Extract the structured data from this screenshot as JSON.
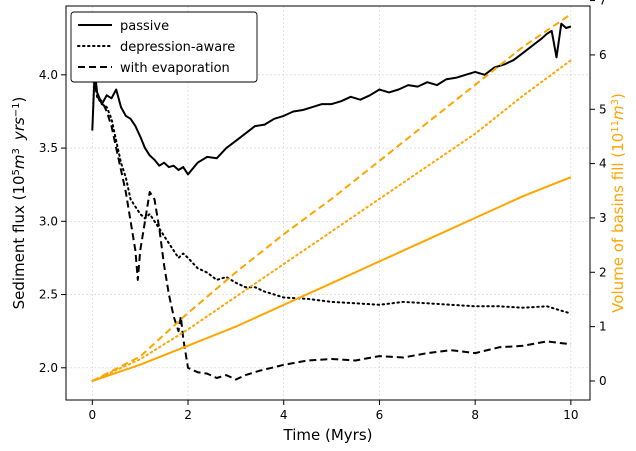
{
  "colors": {
    "left_series": "#000000",
    "right_series": "#ffa500"
  },
  "chart_data": {
    "type": "line",
    "title": "",
    "xlabel": "Time (Myrs)",
    "ylabel": {
      "main": "Sediment flux (10",
      "exp1": "5",
      "unit_m": "m",
      "exp2": "3",
      "unit_yrs": "yrs",
      "exp3": "−1",
      "close": ")"
    },
    "ylabel_right": {
      "main": "Volume of basins fill (10",
      "exp1": "11",
      "unit_m": "m",
      "exp2": "3",
      "close": ")"
    },
    "xlim": [
      -0.55,
      10.4
    ],
    "ylim": [
      1.78,
      4.47
    ],
    "ylim_right": [
      -0.35,
      6.9
    ],
    "xticks": [
      0,
      2,
      4,
      6,
      8,
      10
    ],
    "yticks": [
      2.0,
      2.5,
      3.0,
      3.5,
      4.0
    ],
    "yticks_right": [
      0,
      1,
      2,
      3,
      4,
      5,
      6,
      7
    ],
    "grid": true,
    "legend_position": "top-left",
    "legend": [
      "passive",
      "depression-aware",
      "with evaporation"
    ],
    "series": [
      {
        "name": "passive",
        "axis": "left",
        "style": "solid",
        "x": [
          0,
          0.05,
          0.1,
          0.2,
          0.3,
          0.4,
          0.5,
          0.6,
          0.7,
          0.8,
          0.9,
          1.0,
          1.1,
          1.2,
          1.3,
          1.4,
          1.5,
          1.6,
          1.7,
          1.8,
          1.9,
          2.0,
          2.2,
          2.4,
          2.6,
          2.8,
          3.0,
          3.2,
          3.4,
          3.6,
          3.8,
          4.0,
          4.2,
          4.4,
          4.6,
          4.8,
          5.0,
          5.2,
          5.4,
          5.6,
          5.8,
          6.0,
          6.2,
          6.4,
          6.6,
          6.8,
          7.0,
          7.2,
          7.4,
          7.6,
          7.8,
          8.0,
          8.2,
          8.4,
          8.6,
          8.8,
          9.0,
          9.2,
          9.4,
          9.5,
          9.6,
          9.7,
          9.8,
          9.9,
          10.0
        ],
        "y": [
          3.62,
          4.03,
          3.88,
          3.8,
          3.86,
          3.84,
          3.9,
          3.78,
          3.72,
          3.7,
          3.65,
          3.58,
          3.5,
          3.45,
          3.42,
          3.38,
          3.4,
          3.37,
          3.38,
          3.35,
          3.37,
          3.32,
          3.4,
          3.44,
          3.43,
          3.5,
          3.55,
          3.6,
          3.65,
          3.66,
          3.7,
          3.72,
          3.75,
          3.76,
          3.78,
          3.8,
          3.8,
          3.82,
          3.85,
          3.83,
          3.86,
          3.9,
          3.88,
          3.9,
          3.93,
          3.92,
          3.95,
          3.93,
          3.97,
          3.98,
          4.0,
          4.02,
          4.0,
          4.05,
          4.07,
          4.1,
          4.15,
          4.2,
          4.25,
          4.28,
          4.3,
          4.12,
          4.35,
          4.32,
          4.33
        ]
      },
      {
        "name": "depression-aware",
        "axis": "left",
        "style": "dotted",
        "x": [
          0,
          0.05,
          0.1,
          0.2,
          0.3,
          0.4,
          0.5,
          0.6,
          0.7,
          0.8,
          0.9,
          1.0,
          1.1,
          1.2,
          1.3,
          1.4,
          1.5,
          1.6,
          1.7,
          1.8,
          1.9,
          2.0,
          2.2,
          2.4,
          2.6,
          2.8,
          3.0,
          3.2,
          3.4,
          3.6,
          3.8,
          4.0,
          4.5,
          5.0,
          5.5,
          6.0,
          6.5,
          7.0,
          7.5,
          8.0,
          8.5,
          9.0,
          9.5,
          10.0
        ],
        "y": [
          4.0,
          4.03,
          3.85,
          3.8,
          3.78,
          3.7,
          3.55,
          3.4,
          3.3,
          3.15,
          3.1,
          3.05,
          3.02,
          3.05,
          3.0,
          2.95,
          2.9,
          2.85,
          2.8,
          2.75,
          2.78,
          2.75,
          2.68,
          2.65,
          2.6,
          2.62,
          2.58,
          2.55,
          2.55,
          2.52,
          2.5,
          2.48,
          2.47,
          2.45,
          2.44,
          2.43,
          2.45,
          2.44,
          2.43,
          2.42,
          2.42,
          2.41,
          2.42,
          2.37
        ]
      },
      {
        "name": "with evaporation",
        "axis": "left",
        "style": "dashed",
        "x": [
          0,
          0.05,
          0.1,
          0.2,
          0.3,
          0.4,
          0.5,
          0.6,
          0.7,
          0.8,
          0.9,
          0.95,
          1.0,
          1.1,
          1.2,
          1.3,
          1.4,
          1.5,
          1.6,
          1.7,
          1.8,
          1.85,
          1.9,
          1.95,
          2.0,
          2.2,
          2.4,
          2.6,
          2.8,
          3.0,
          3.2,
          3.5,
          4.0,
          4.5,
          5.0,
          5.5,
          6.0,
          6.5,
          7.0,
          7.5,
          8.0,
          8.5,
          9.0,
          9.5,
          10.0
        ],
        "y": [
          4.0,
          3.95,
          3.85,
          3.82,
          3.75,
          3.65,
          3.5,
          3.35,
          3.2,
          3.0,
          2.8,
          2.6,
          2.8,
          3.0,
          3.2,
          3.15,
          2.95,
          2.7,
          2.5,
          2.35,
          2.25,
          2.35,
          2.2,
          2.1,
          2.0,
          1.97,
          1.96,
          1.93,
          1.95,
          1.92,
          1.95,
          1.98,
          2.02,
          2.05,
          2.06,
          2.05,
          2.08,
          2.07,
          2.1,
          2.12,
          2.1,
          2.14,
          2.15,
          2.18,
          2.16
        ]
      },
      {
        "name": "passive",
        "axis": "right",
        "style": "solid",
        "x": [
          0,
          1,
          2,
          3,
          4,
          5,
          6,
          7,
          8,
          9,
          10
        ],
        "y": [
          0,
          0.3,
          0.65,
          1.0,
          1.4,
          1.8,
          2.2,
          2.6,
          3.0,
          3.4,
          3.75
        ]
      },
      {
        "name": "depression-aware",
        "axis": "right",
        "style": "dotted",
        "x": [
          0,
          1,
          2,
          3,
          4,
          5,
          6,
          7,
          8,
          9,
          10
        ],
        "y": [
          0,
          0.4,
          0.95,
          1.55,
          2.15,
          2.75,
          3.35,
          3.95,
          4.55,
          5.25,
          5.9
        ]
      },
      {
        "name": "with evaporation",
        "axis": "right",
        "style": "dashed",
        "x": [
          0,
          1,
          2,
          3,
          4,
          5,
          6,
          7,
          8,
          9,
          10
        ],
        "y": [
          0,
          0.45,
          1.25,
          2.0,
          2.7,
          3.35,
          4.05,
          4.75,
          5.45,
          6.15,
          6.75
        ]
      }
    ]
  }
}
